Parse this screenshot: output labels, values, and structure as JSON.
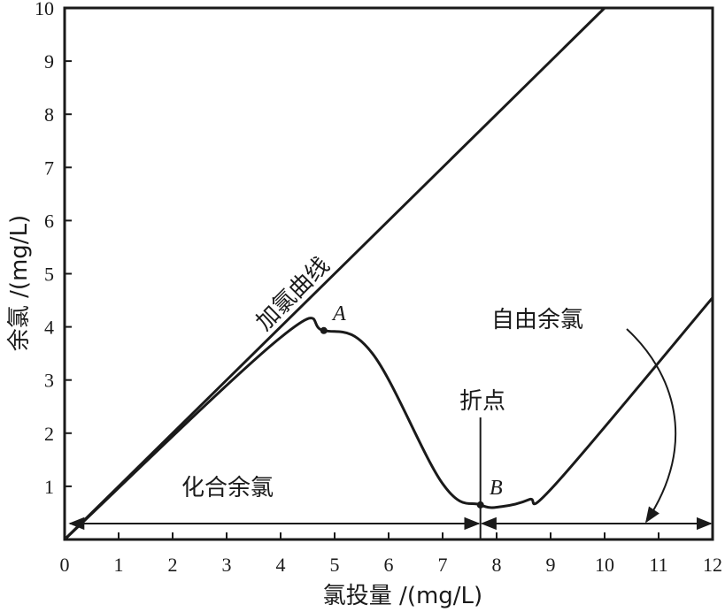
{
  "chart_data": {
    "type": "line",
    "title": "",
    "xlabel": "氯投量 /(mg/L)",
    "ylabel": "余氯 /(mg/L)",
    "xlim": [
      0,
      12
    ],
    "ylim": [
      0,
      10
    ],
    "x_ticks": [
      0,
      1,
      2,
      3,
      4,
      5,
      6,
      7,
      8,
      9,
      10,
      11,
      12
    ],
    "y_ticks": [
      1,
      2,
      3,
      4,
      5,
      6,
      7,
      8,
      9,
      10
    ],
    "grid": false,
    "colors": {
      "ink": "#1a1a1a"
    },
    "series": [
      {
        "name": "加氯曲线",
        "x": [
          0,
          10
        ],
        "y": [
          0,
          10
        ]
      },
      {
        "name": "",
        "x": [
          0,
          4,
          4.8,
          5.7,
          7,
          7.7,
          8.1,
          8.6,
          9.1,
          12
        ],
        "y": [
          0,
          3.8,
          3.93,
          3.5,
          1.05,
          0.65,
          0.62,
          0.75,
          1.05,
          4.55
        ]
      }
    ],
    "points": [
      {
        "label": "A",
        "x": 4.8,
        "y": 3.93
      },
      {
        "label": "B",
        "x": 7.7,
        "y": 0.65
      }
    ],
    "breakpoint": {
      "label": "折点",
      "x": 7.7
    },
    "regions": [
      {
        "label": "化合余氯",
        "from": 0,
        "to": 7.7,
        "y": 0.3
      },
      {
        "label": "自由余氯",
        "from": 7.7,
        "to": 12,
        "y": 0.3
      }
    ],
    "annotations": {
      "curve_label": "加氯曲线",
      "combined_label": "化合余氯",
      "free_label": "自由余氯",
      "breakpoint_label": "折点",
      "point_a": "A",
      "point_b": "B"
    }
  }
}
